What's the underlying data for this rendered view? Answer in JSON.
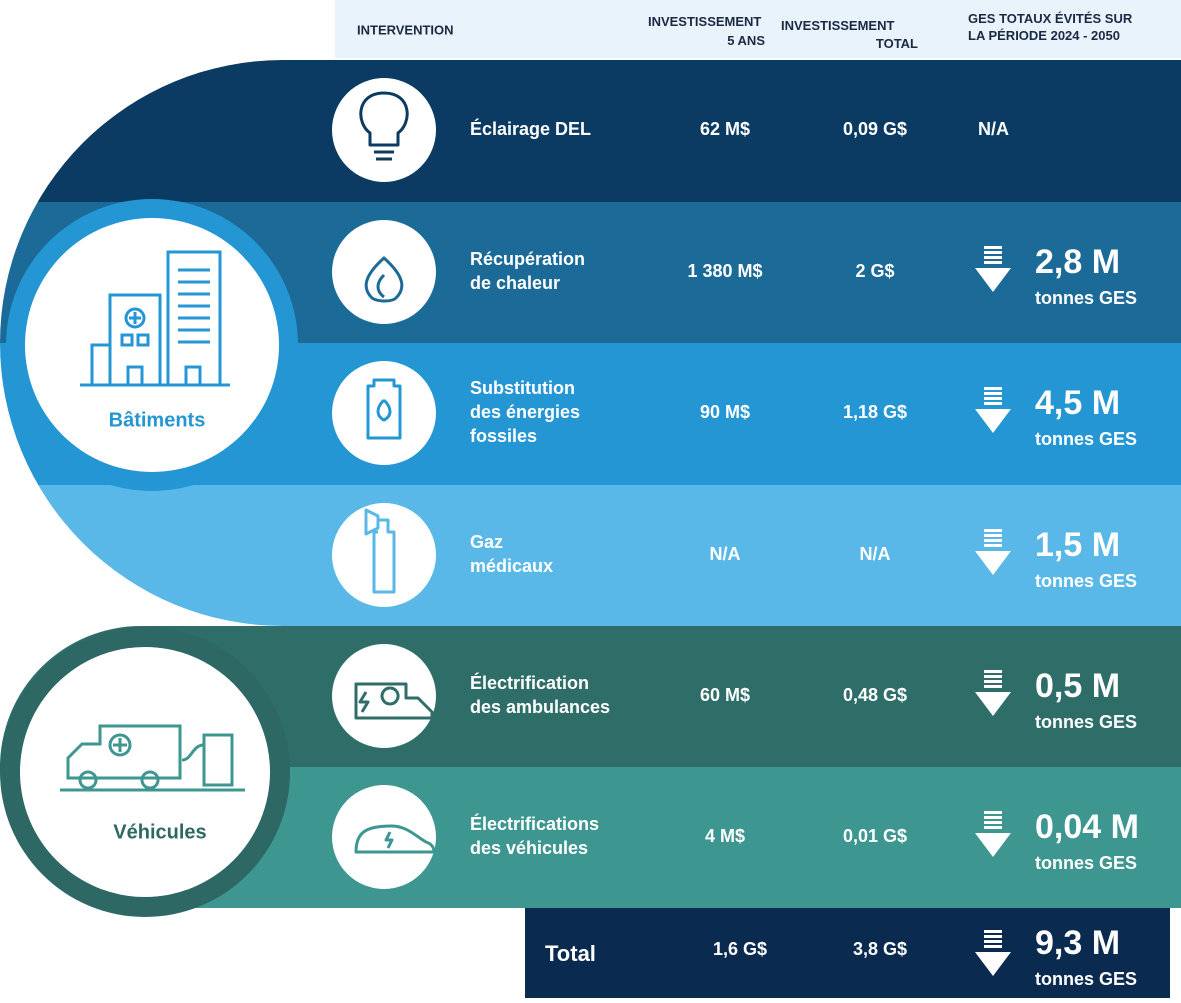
{
  "header": {
    "intervention": "INTERVENTION",
    "invest_5": [
      "INVESTISSEMENT",
      "5 ANS"
    ],
    "invest_total": [
      "INVESTISSEMENT",
      "TOTAL"
    ],
    "ges": [
      "GES TOTAUX ÉVITÉS SUR",
      "LA PÉRIODE 2024 - 2050"
    ]
  },
  "groups": [
    {
      "label": "Bâtiments"
    },
    {
      "label": "Véhicules"
    }
  ],
  "rows": [
    {
      "name": [
        "Éclairage DEL"
      ],
      "invest_5": "62 M$",
      "invest_total": "0,09 G$",
      "ges": "N/A"
    },
    {
      "name": [
        "Récupération",
        "de chaleur"
      ],
      "invest_5": "1 380 M$",
      "invest_total": "2 G$",
      "ges": "2,8 M",
      "ges_unit": "tonnes GES"
    },
    {
      "name": [
        "Substitution",
        "des énergies",
        "fossiles"
      ],
      "invest_5": "90 M$",
      "invest_total": "1,18 G$",
      "ges": "4,5 M",
      "ges_unit": "tonnes GES"
    },
    {
      "name": [
        "Gaz",
        "médicaux"
      ],
      "invest_5": "N/A",
      "invest_total": "N/A",
      "ges": "1,5 M",
      "ges_unit": "tonnes GES"
    },
    {
      "name": [
        "Électrification",
        "des ambulances"
      ],
      "invest_5": "60 M$",
      "invest_total": "0,48 G$",
      "ges": "0,5 M",
      "ges_unit": "tonnes GES"
    },
    {
      "name": [
        "Électrifications",
        "des véhicules"
      ],
      "invest_5": "4 M$",
      "invest_total": "0,01 G$",
      "ges": "0,04 M",
      "ges_unit": "tonnes GES"
    }
  ],
  "total": {
    "label": "Total",
    "invest_5": "1,6 G$",
    "invest_total": "3,8 G$",
    "ges": "9,3 M",
    "ges_unit": "tonnes GES"
  }
}
